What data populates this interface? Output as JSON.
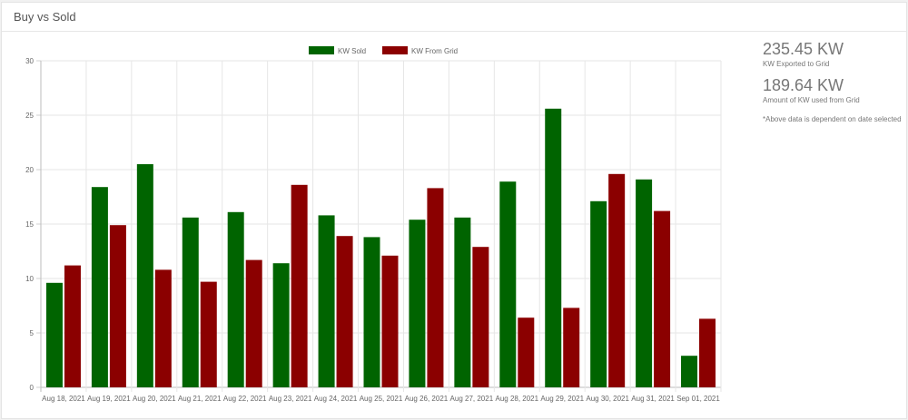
{
  "card": {
    "title": "Buy vs Sold"
  },
  "stats": {
    "exported_value": "235.45 KW",
    "exported_label": "KW Exported to Grid",
    "used_value": "189.64 KW",
    "used_label": "Amount of KW used from Grid",
    "note": "*Above data is dependent on date selected"
  },
  "chart_data": {
    "type": "bar",
    "categories": [
      "Aug 18, 2021",
      "Aug 19, 2021",
      "Aug 20, 2021",
      "Aug 21, 2021",
      "Aug 22, 2021",
      "Aug 23, 2021",
      "Aug 24, 2021",
      "Aug 25, 2021",
      "Aug 26, 2021",
      "Aug 27, 2021",
      "Aug 28, 2021",
      "Aug 29, 2021",
      "Aug 30, 2021",
      "Aug 31, 2021",
      "Sep 01, 2021"
    ],
    "series": [
      {
        "name": "KW Sold",
        "color": "#006400",
        "values": [
          9.6,
          18.4,
          20.5,
          15.6,
          16.1,
          11.4,
          15.8,
          13.8,
          15.4,
          15.6,
          18.9,
          25.6,
          17.1,
          19.1,
          2.9
        ]
      },
      {
        "name": "KW From Grid",
        "color": "#8b0000",
        "values": [
          11.2,
          14.9,
          10.8,
          9.7,
          11.7,
          18.6,
          13.9,
          12.1,
          18.3,
          12.9,
          6.4,
          7.3,
          19.6,
          16.2,
          6.3
        ]
      }
    ],
    "yticks": [
      0,
      5,
      10,
      15,
      20,
      25,
      30
    ],
    "ylim": [
      0,
      30
    ],
    "grid": true,
    "legend": "top-center"
  }
}
